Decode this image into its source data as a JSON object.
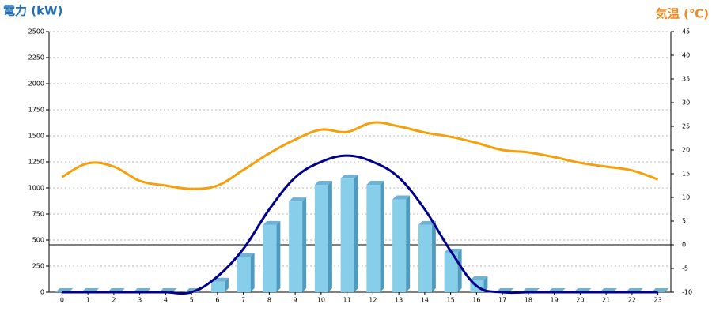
{
  "chart_data": {
    "type": "bar-line",
    "y_title": "電力 (kW)",
    "y2_title": "気温 (℃)",
    "categories": [
      "0",
      "1",
      "2",
      "3",
      "4",
      "5",
      "6",
      "7",
      "8",
      "9",
      "10",
      "11",
      "12",
      "13",
      "14",
      "15",
      "16",
      "17",
      "18",
      "19",
      "20",
      "21",
      "22",
      "23"
    ],
    "series": [
      {
        "type": "bar",
        "color": "#87ceeb",
        "values": [
          0,
          0,
          0,
          0,
          0,
          0,
          100,
          340,
          645,
          870,
          1030,
          1090,
          1030,
          890,
          645,
          380,
          115,
          0,
          0,
          0,
          0,
          0,
          0,
          0
        ]
      },
      {
        "type": "line",
        "color": "#00008b",
        "values": [
          0,
          0,
          0,
          0,
          0,
          0,
          150,
          415,
          795,
          1100,
          1250,
          1310,
          1250,
          1100,
          795,
          395,
          60,
          0,
          0,
          0,
          0,
          0,
          0,
          0
        ]
      },
      {
        "type": "line",
        "color": "#f5a00a",
        "axis": "y2",
        "values": [
          14.3,
          17.2,
          16.5,
          13.5,
          12.5,
          11.8,
          12.5,
          15.8,
          19.3,
          22.2,
          24.3,
          23.8,
          25.8,
          25,
          23.7,
          22.8,
          21.5,
          20,
          19.5,
          18.5,
          17.3,
          16.5,
          15.7,
          13.8
        ]
      }
    ],
    "ylim": [
      0,
      2500
    ],
    "yticks": [
      0,
      250,
      500,
      750,
      1000,
      1250,
      1500,
      1750,
      2000,
      2250,
      2500
    ],
    "y2lim": [
      -10,
      45
    ],
    "y2ticks": [
      -10,
      -5,
      0,
      5,
      10,
      15,
      20,
      25,
      30,
      35,
      40,
      45
    ],
    "grid": true
  }
}
